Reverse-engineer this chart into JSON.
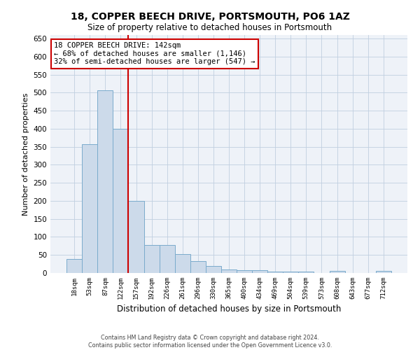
{
  "title": "18, COPPER BEECH DRIVE, PORTSMOUTH, PO6 1AZ",
  "subtitle": "Size of property relative to detached houses in Portsmouth",
  "xlabel": "Distribution of detached houses by size in Portsmouth",
  "ylabel": "Number of detached properties",
  "bar_labels": [
    "18sqm",
    "53sqm",
    "87sqm",
    "122sqm",
    "157sqm",
    "192sqm",
    "226sqm",
    "261sqm",
    "296sqm",
    "330sqm",
    "365sqm",
    "400sqm",
    "434sqm",
    "469sqm",
    "504sqm",
    "539sqm",
    "573sqm",
    "608sqm",
    "643sqm",
    "677sqm",
    "712sqm"
  ],
  "bar_values": [
    38,
    357,
    507,
    400,
    200,
    78,
    78,
    52,
    33,
    20,
    10,
    8,
    8,
    4,
    4,
    4,
    0,
    5,
    0,
    0,
    5
  ],
  "bar_color": "#ccdaea",
  "bar_edge_color": "#7aabcc",
  "property_line_color": "#cc0000",
  "property_line_x": 3.5,
  "annotation_text": "18 COPPER BEECH DRIVE: 142sqm\n← 68% of detached houses are smaller (1,146)\n32% of semi-detached houses are larger (547) →",
  "annotation_box_facecolor": "#ffffff",
  "annotation_box_edgecolor": "#cc0000",
  "ylim": [
    0,
    660
  ],
  "yticks": [
    0,
    50,
    100,
    150,
    200,
    250,
    300,
    350,
    400,
    450,
    500,
    550,
    600,
    650
  ],
  "footer_line1": "Contains HM Land Registry data © Crown copyright and database right 2024.",
  "footer_line2": "Contains public sector information licensed under the Open Government Licence v3.0.",
  "plot_bg_color": "#eef2f8",
  "grid_color": "#c0cfe0",
  "fig_bg_color": "#ffffff"
}
